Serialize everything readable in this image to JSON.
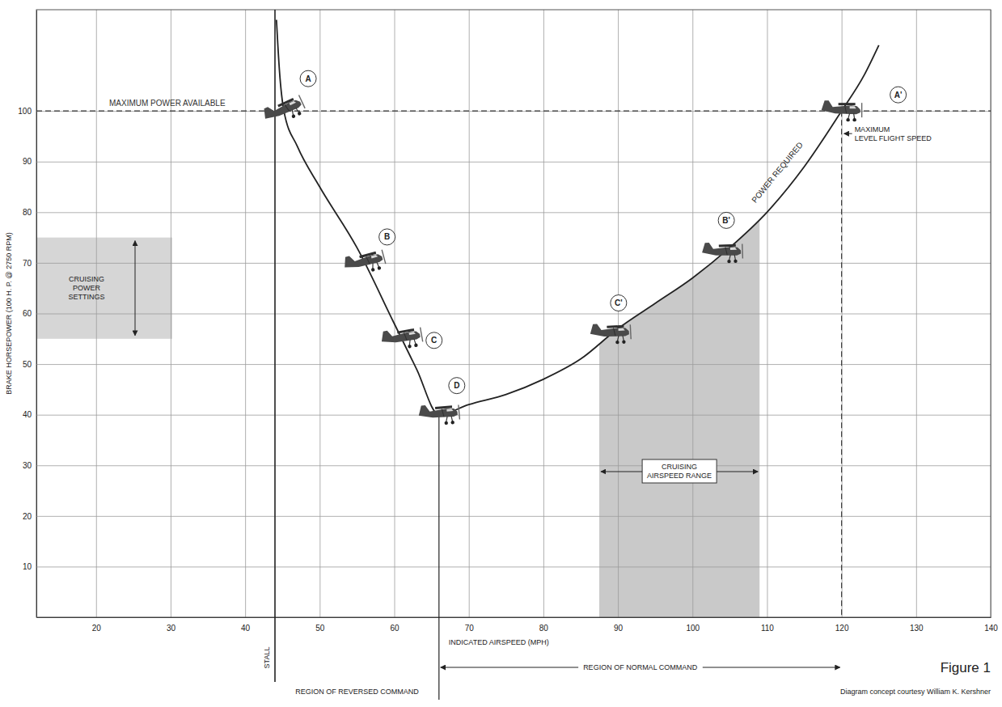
{
  "chart_data": {
    "type": "line",
    "x_label": "INDICATED AIRSPEED (MPH)",
    "y_label": "BRAKE HORSEPOWER (100 H. P. @ 2750 RPM)",
    "x": [
      44.2,
      44.6,
      45.2,
      47,
      50,
      55,
      60,
      63,
      66,
      70,
      75,
      80,
      85,
      90,
      95,
      100,
      105,
      110,
      115,
      120,
      123,
      125
    ],
    "series": [
      {
        "name": "POWER REQUIRED",
        "color": "#222222",
        "values": [
          118,
          108,
          100,
          93,
          85,
          73,
          58,
          49,
          40,
          42,
          44,
          47,
          51,
          57,
          62,
          67,
          73,
          80,
          89,
          100,
          107,
          113
        ]
      }
    ],
    "xlim": [
      12,
      140
    ],
    "ylim": [
      0,
      120
    ],
    "xticks": [
      20,
      30,
      40,
      50,
      60,
      70,
      80,
      90,
      100,
      110,
      120,
      130,
      140
    ],
    "yticks": [
      10,
      20,
      30,
      40,
      50,
      60,
      70,
      80,
      90,
      100
    ],
    "grid": true,
    "points": [
      {
        "label": "A",
        "x": 45.2,
        "y": 100
      },
      {
        "label": "B",
        "x": 56,
        "y": 70
      },
      {
        "label": "C",
        "x": 61,
        "y": 55
      },
      {
        "label": "D",
        "x": 66,
        "y": 40
      },
      {
        "label": "C'",
        "x": 89,
        "y": 56
      },
      {
        "label": "B'",
        "x": 104,
        "y": 72
      },
      {
        "label": "A'",
        "x": 120,
        "y": 100
      }
    ],
    "annotations": {
      "max_power": {
        "text": "MAXIMUM POWER AVAILABLE",
        "y": 100
      },
      "max_speed": {
        "text": "MAXIMUM LEVEL FLIGHT SPEED",
        "x": 120
      },
      "stall": {
        "text": "STALL",
        "x": 44
      },
      "cruising_airspeed": {
        "text": "CRUISING AIRSPEED RANGE",
        "x": [
          87.5,
          109
        ]
      },
      "cruising_power": {
        "text": "CRUISING POWER SETTINGS",
        "y": [
          55,
          75
        ]
      },
      "regions": [
        {
          "text": "REGION OF REVERSED COMMAND",
          "x": [
            44,
            66
          ]
        },
        {
          "text": "REGION OF NORMAL COMMAND",
          "x": [
            66,
            120
          ]
        }
      ],
      "figure": "Figure 1",
      "credit": "Diagram concept courtesy William K. Kershner"
    }
  }
}
